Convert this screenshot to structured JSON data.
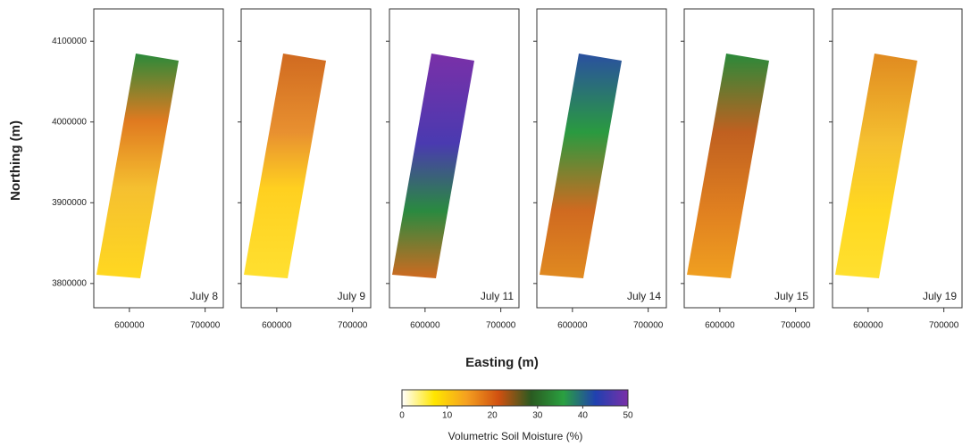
{
  "chart_data": {
    "type": "map",
    "xlabel": "Easting (m)",
    "ylabel": "Northing (m)",
    "panels": [
      {
        "label": "July 8"
      },
      {
        "label": "July 9"
      },
      {
        "label": "July 11"
      },
      {
        "label": "July 14"
      },
      {
        "label": "July 15"
      },
      {
        "label": "July 19"
      }
    ],
    "xlim": [
      553000,
      724000
    ],
    "xticks": [
      600000,
      700000
    ],
    "ylim": [
      3770000,
      4140000
    ],
    "yticks": [
      3800000,
      3900000,
      4000000,
      4100000
    ],
    "colorbar": {
      "label": "Volumetric Soil Moisture (%)",
      "lim": [
        0,
        50
      ],
      "ticks": [
        0,
        10,
        20,
        30,
        40,
        50
      ],
      "colors": [
        "#ffffff",
        "#ffe600",
        "#f5a020",
        "#d05010",
        "#2a5a20",
        "#2aa040",
        "#2040b0",
        "#7a30a8"
      ]
    }
  }
}
